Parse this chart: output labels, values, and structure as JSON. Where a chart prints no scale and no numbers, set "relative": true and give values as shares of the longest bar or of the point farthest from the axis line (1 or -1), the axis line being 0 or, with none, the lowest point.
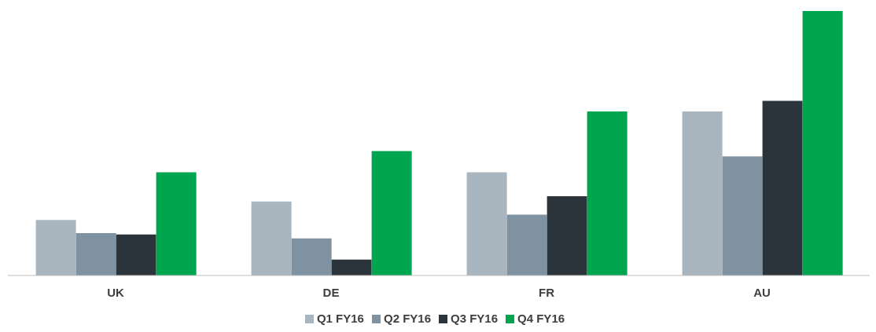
{
  "chart_data": {
    "type": "bar",
    "relative": true,
    "categories": [
      "UK",
      "DE",
      "FR",
      "AU"
    ],
    "series": [
      {
        "name": "Q1 FY16",
        "color": "#a9b5bf",
        "values": [
          0.21,
          0.28,
          0.39,
          0.62
        ]
      },
      {
        "name": "Q2 FY16",
        "color": "#7f92a2",
        "values": [
          0.16,
          0.14,
          0.23,
          0.45
        ]
      },
      {
        "name": "Q3 FY16",
        "color": "#2b343b",
        "values": [
          0.155,
          0.06,
          0.3,
          0.66
        ]
      },
      {
        "name": "Q4 FY16",
        "color": "#00a54f",
        "values": [
          0.39,
          0.47,
          0.62,
          1
        ]
      }
    ],
    "legend": "bottom",
    "grid": false
  }
}
